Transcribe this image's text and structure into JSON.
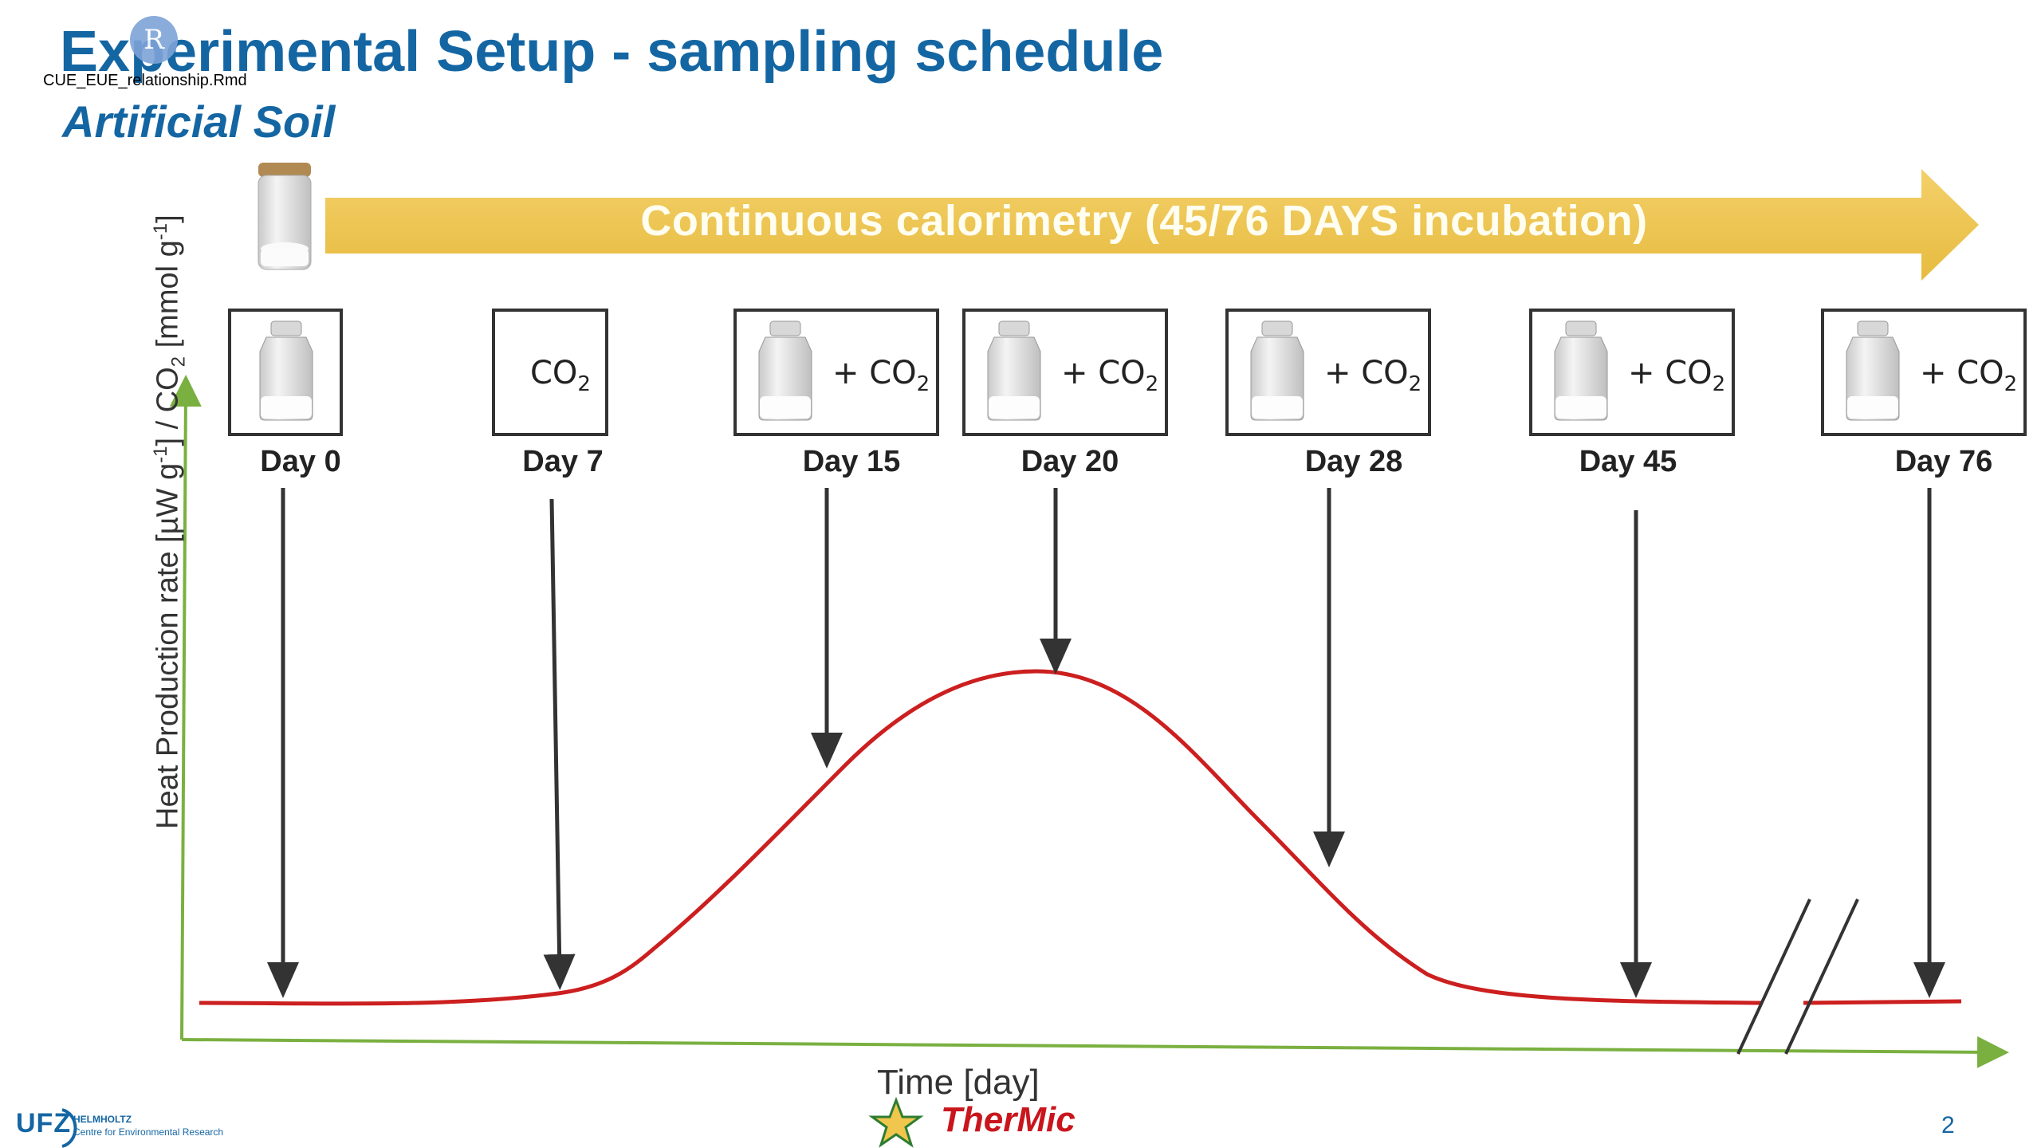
{
  "slide": {
    "title": "Experimental Setup - sampling schedule",
    "subtitle": "Artificial Soil",
    "filename": "CUE_EUE_relationship.Rmd",
    "badge_letter": "R",
    "page_number": "2"
  },
  "banner": {
    "text": "Continuous calorimetry (45/76 DAYS incubation)",
    "color": "#f0c64d"
  },
  "timepoints": [
    {
      "day_label": "Day 0",
      "box_text": "",
      "has_jar": true,
      "co2_sub": ""
    },
    {
      "day_label": "Day 7",
      "box_text": "CO",
      "has_jar": false,
      "co2_sub": "2"
    },
    {
      "day_label": "Day 15",
      "box_text": "+ CO",
      "has_jar": true,
      "co2_sub": "2"
    },
    {
      "day_label": "Day 20",
      "box_text": "+ CO",
      "has_jar": true,
      "co2_sub": "2"
    },
    {
      "day_label": "Day 28",
      "box_text": "+ CO",
      "has_jar": true,
      "co2_sub": "2"
    },
    {
      "day_label": "Day 45",
      "box_text": "+ CO",
      "has_jar": true,
      "co2_sub": "2"
    },
    {
      "day_label": "Day 76",
      "box_text": "+ CO",
      "has_jar": true,
      "co2_sub": "2"
    }
  ],
  "axes": {
    "x_label": "Time [day]",
    "y_label_parts": [
      "Heat Production rate [µW g",
      "-1",
      "] /  CO",
      "2",
      " [mmol g",
      "-1",
      "]"
    ],
    "axis_color": "#7ab040",
    "curve_color": "#cc1f1f"
  },
  "logos": {
    "ufz": "UFZ",
    "helmholtz": "HELMHOLTZ",
    "centre": "Centre for Environmental Research",
    "thermic": "TherMic"
  }
}
